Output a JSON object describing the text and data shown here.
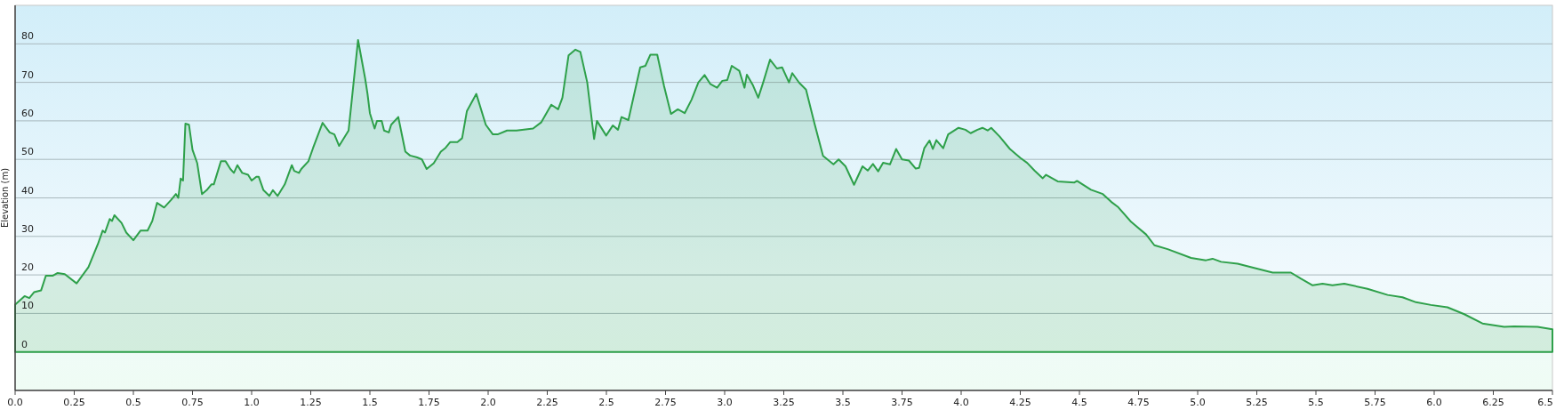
{
  "chart_data": {
    "type": "area",
    "ylabel": "Elevation (m)",
    "xlim": [
      0,
      6.5
    ],
    "ylim": [
      -10,
      90
    ],
    "xticks": [
      {
        "value": 0,
        "label": "0.0"
      },
      0.25,
      0.5,
      0.75,
      {
        "value": 1,
        "label": "1.0"
      },
      1.25,
      1.5,
      1.75,
      {
        "value": 2,
        "label": "2.0"
      },
      2.25,
      2.5,
      2.75,
      {
        "value": 3,
        "label": "3.0"
      },
      3.25,
      3.5,
      3.75,
      {
        "value": 4,
        "label": "4.0"
      },
      4.25,
      4.5,
      4.75,
      {
        "value": 5,
        "label": "5.0"
      },
      5.25,
      5.5,
      5.75,
      {
        "value": 6,
        "label": "6.0"
      },
      6.25,
      6.5
    ],
    "yticks": [
      0,
      10,
      20,
      30,
      40,
      50,
      60,
      70,
      80
    ],
    "grid": "y",
    "series": [
      {
        "color": "#2ea04a",
        "x": [
          0,
          0.04,
          0.06,
          0.08,
          0.11,
          0.13,
          0.16,
          0.18,
          0.21,
          0.26,
          0.31,
          0.35,
          0.37,
          0.38,
          0.4,
          0.41,
          0.42,
          0.45,
          0.47,
          0.5,
          0.53,
          0.56,
          0.58,
          0.6,
          0.63,
          0.66,
          0.68,
          0.69,
          0.7,
          0.71,
          0.72,
          0.735,
          0.75,
          0.77,
          0.79,
          0.81,
          0.83,
          0.84,
          0.87,
          0.89,
          0.91,
          0.925,
          0.94,
          0.96,
          0.985,
          1,
          1.02,
          1.03,
          1.05,
          1.075,
          1.09,
          1.11,
          1.14,
          1.17,
          1.18,
          1.2,
          1.21,
          1.24,
          1.26,
          1.3,
          1.33,
          1.35,
          1.37,
          1.41,
          1.45,
          1.48,
          1.49,
          1.5,
          1.52,
          1.53,
          1.55,
          1.56,
          1.58,
          1.59,
          1.62,
          1.65,
          1.67,
          1.7,
          1.72,
          1.74,
          1.77,
          1.8,
          1.82,
          1.84,
          1.87,
          1.89,
          1.91,
          1.95,
          1.99,
          2.02,
          2.04,
          2.08,
          2.12,
          2.19,
          2.224,
          2.267,
          2.296,
          2.314,
          2.34,
          2.369,
          2.39,
          2.419,
          2.448,
          2.46,
          2.499,
          2.527,
          2.549,
          2.564,
          2.593,
          2.614,
          2.643,
          2.665,
          2.686,
          2.715,
          2.744,
          2.773,
          2.802,
          2.831,
          2.86,
          2.889,
          2.915,
          2.939,
          2.968,
          2.99,
          3.011,
          3.03,
          3.062,
          3.084,
          3.094,
          3.12,
          3.142,
          3.163,
          3.192,
          3.221,
          3.243,
          3.272,
          3.286,
          3.315,
          3.344,
          3.38,
          3.416,
          3.46,
          3.482,
          3.511,
          3.547,
          3.583,
          3.605,
          3.627,
          3.649,
          3.67,
          3.699,
          3.725,
          3.75,
          3.779,
          3.808,
          3.822,
          3.844,
          3.866,
          3.88,
          3.895,
          3.924,
          3.945,
          3.989,
          4.018,
          4.04,
          4.069,
          4.09,
          4.112,
          4.127,
          4.163,
          4.206,
          4.25,
          4.279,
          4.31,
          4.345,
          4.359,
          4.408,
          4.479,
          4.49,
          4.549,
          4.599,
          4.634,
          4.662,
          4.718,
          4.782,
          4.817,
          4.873,
          4.972,
          5.035,
          5.063,
          5.099,
          5.169,
          5.239,
          5.317,
          5.394,
          5.437,
          5.486,
          5.528,
          5.57,
          5.62,
          5.718,
          5.803,
          5.866,
          5.923,
          5.986,
          6.056,
          6.127,
          6.204,
          6.296,
          6.338,
          6.437,
          6.5
        ],
        "values": [
          12.3,
          14.5,
          14,
          15.5,
          16,
          19.8,
          19.8,
          20.5,
          20.2,
          17.8,
          22,
          28,
          31.5,
          31,
          34.5,
          34,
          35.5,
          33.5,
          31,
          29,
          31.5,
          31.5,
          34,
          38.7,
          37.5,
          39.5,
          41,
          40,
          45,
          44.5,
          59.3,
          59,
          52.5,
          49,
          41,
          42,
          43.5,
          43.5,
          49.5,
          49.5,
          47.5,
          46.5,
          48.5,
          46.5,
          46,
          44.5,
          45.5,
          45.5,
          42,
          40.5,
          42,
          40.5,
          43.5,
          48.5,
          47,
          46.5,
          47.5,
          49.5,
          53,
          59.5,
          57,
          56.5,
          53.5,
          57.5,
          81,
          71,
          67,
          62,
          58,
          60,
          60,
          57.5,
          57,
          59,
          61,
          52,
          51,
          50.5,
          50,
          47.5,
          49,
          52,
          53,
          54.5,
          54.5,
          55.5,
          62.5,
          67,
          59,
          56.5,
          56.5,
          57.5,
          57.5,
          58,
          59.6,
          64.2,
          63,
          66,
          77,
          78.5,
          77.9,
          70,
          55.3,
          60,
          56.2,
          58.8,
          57.7,
          61,
          60.2,
          66,
          73.9,
          74.3,
          77.2,
          77.2,
          69,
          61.8,
          63,
          62,
          65.5,
          70,
          71.9,
          69.6,
          68.6,
          70.4,
          70.6,
          74.3,
          73,
          68.6,
          72,
          69.2,
          66,
          70,
          75.9,
          73.6,
          73.9,
          70,
          72.4,
          69.9,
          68.1,
          59.3,
          50.9,
          48.7,
          50,
          48.2,
          43.4,
          48.2,
          47.1,
          48.8,
          46.9,
          49.1,
          48.7,
          52.7,
          50,
          49.7,
          47.6,
          47.8,
          52.9,
          54.9,
          52.7,
          55,
          52.9,
          56.5,
          58.2,
          57.7,
          56.8,
          57.7,
          58.2,
          57.5,
          58.2,
          55.9,
          52.7,
          50.4,
          49.1,
          47.1,
          45.1,
          46,
          44.3,
          44,
          44.4,
          42.1,
          41,
          39,
          37.7,
          33.8,
          30.5,
          27.7,
          26.7,
          24.4,
          23.8,
          24.2,
          23.4,
          22.9,
          21.8,
          20.6,
          20.6,
          19,
          17.3,
          17.7,
          17.3,
          17.7,
          16.4,
          14.8,
          14.2,
          12.9,
          12.2,
          11.6,
          9.8,
          7.4,
          6.5,
          6.6,
          6.5,
          5.9
        ]
      }
    ]
  }
}
